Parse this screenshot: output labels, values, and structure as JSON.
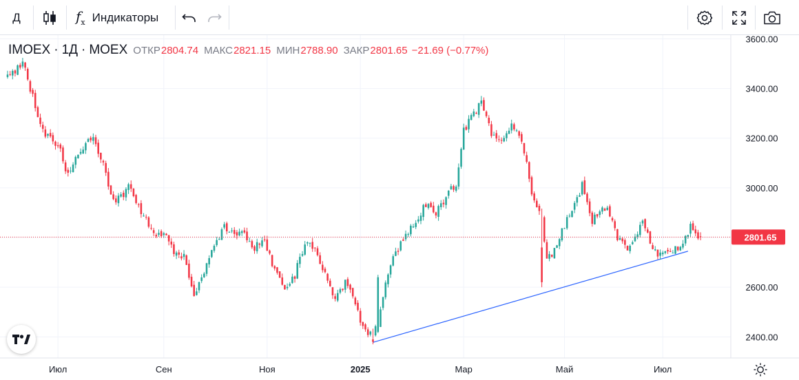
{
  "toolbar": {
    "interval_label": "Д",
    "indicators_label": "Индикаторы"
  },
  "legend": {
    "symbol": "IMOEX",
    "interval": "1Д",
    "exchange": "MOEX",
    "open_label": "ОТКР",
    "open_value": "2804.74",
    "high_label": "МАКС",
    "high_value": "2821.15",
    "low_label": "МИН",
    "low_value": "2788.90",
    "close_label": "ЗАКР",
    "close_value": "2801.65",
    "change": "−21.69 (−0.77%)"
  },
  "colors": {
    "up": "#26a69a",
    "down": "#f23645",
    "trendline": "#2962ff",
    "grid": "#f0f3fa",
    "price_line": "#f23645"
  },
  "chart_data": {
    "type": "candlestick",
    "title": "IMOEX · 1Д · MOEX",
    "y_axis": {
      "ticks": [
        "3600.00",
        "3400.00",
        "3200.00",
        "3000.00",
        "2800.00",
        "2600.00",
        "2400.00"
      ],
      "tick_values": [
        3600,
        3400,
        3200,
        3000,
        2800,
        2600,
        2400
      ],
      "ylim": [
        2315,
        3615
      ]
    },
    "x_axis": {
      "labels": [
        "Июл",
        "Сен",
        "Ноя",
        "2025",
        "Мар",
        "Май",
        "Июл"
      ],
      "label_bars": [
        20,
        62,
        103,
        140,
        181,
        221,
        260
      ],
      "bold": [
        false,
        false,
        false,
        true,
        false,
        false,
        false
      ],
      "xlim": [
        -3,
        287
      ]
    },
    "last_price": 2801.65,
    "last_price_label": "2801.65",
    "trendline": {
      "from": {
        "bar": 145,
        "price": 2378
      },
      "to": {
        "bar": 270,
        "price": 2745
      }
    },
    "anchors": [
      [
        0,
        3440
      ],
      [
        6,
        3505
      ],
      [
        8,
        3430
      ],
      [
        12,
        3300
      ],
      [
        15,
        3210
      ],
      [
        20,
        3180
      ],
      [
        24,
        3050
      ],
      [
        28,
        3140
      ],
      [
        34,
        3210
      ],
      [
        38,
        3090
      ],
      [
        42,
        2940
      ],
      [
        48,
        3000
      ],
      [
        54,
        2880
      ],
      [
        58,
        2820
      ],
      [
        62,
        2810
      ],
      [
        66,
        2740
      ],
      [
        70,
        2720
      ],
      [
        74,
        2560
      ],
      [
        78,
        2660
      ],
      [
        82,
        2760
      ],
      [
        86,
        2840
      ],
      [
        90,
        2810
      ],
      [
        94,
        2820
      ],
      [
        98,
        2760
      ],
      [
        102,
        2780
      ],
      [
        106,
        2670
      ],
      [
        110,
        2600
      ],
      [
        114,
        2650
      ],
      [
        118,
        2780
      ],
      [
        122,
        2760
      ],
      [
        126,
        2650
      ],
      [
        130,
        2560
      ],
      [
        134,
        2620
      ],
      [
        138,
        2530
      ],
      [
        141,
        2440
      ],
      [
        144,
        2410
      ],
      [
        147,
        2450
      ],
      [
        150,
        2620
      ],
      [
        154,
        2740
      ],
      [
        158,
        2800
      ],
      [
        162,
        2870
      ],
      [
        166,
        2930
      ],
      [
        170,
        2900
      ],
      [
        174,
        2960
      ],
      [
        178,
        3020
      ],
      [
        181,
        3230
      ],
      [
        184,
        3290
      ],
      [
        188,
        3340
      ],
      [
        192,
        3220
      ],
      [
        196,
        3180
      ],
      [
        200,
        3260
      ],
      [
        204,
        3200
      ],
      [
        208,
        2980
      ],
      [
        212,
        2860
      ],
      [
        214,
        2700
      ],
      [
        218,
        2770
      ],
      [
        222,
        2880
      ],
      [
        226,
        2960
      ],
      [
        228,
        3010
      ],
      [
        232,
        2870
      ],
      [
        236,
        2920
      ],
      [
        238,
        2910
      ],
      [
        242,
        2800
      ],
      [
        246,
        2760
      ],
      [
        250,
        2810
      ],
      [
        252,
        2870
      ],
      [
        256,
        2750
      ],
      [
        260,
        2730
      ],
      [
        264,
        2740
      ],
      [
        268,
        2790
      ],
      [
        271,
        2840
      ],
      [
        274,
        2810
      ],
      [
        275,
        2805
      ]
    ],
    "bars": 276,
    "last_bar": {
      "open": 2804.74,
      "high": 2821.15,
      "low": 2788.9,
      "close": 2801.65
    }
  }
}
